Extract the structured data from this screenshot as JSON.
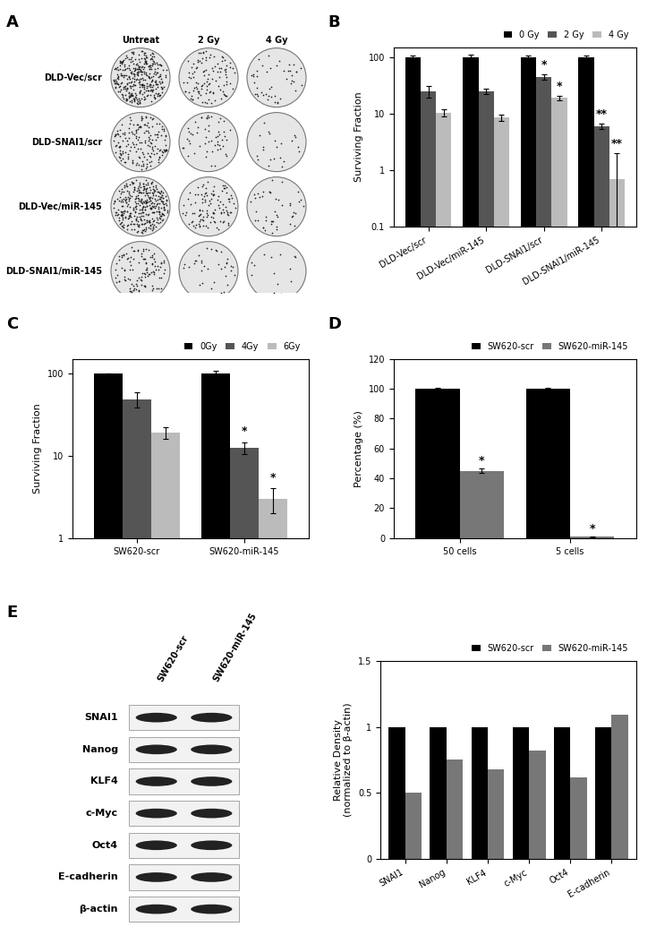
{
  "panel_labels": [
    "A",
    "B",
    "C",
    "D",
    "E"
  ],
  "plates": {
    "columns": [
      "Untreat",
      "2 Gy",
      "4 Gy"
    ],
    "rows": [
      "DLD-Vec/scr",
      "DLD-SNAI1/scr",
      "DLD-Vec/miR-145",
      "DLD-SNAI1/miR-145"
    ]
  },
  "blot": {
    "lanes": [
      "SW620-scr",
      "SW620-miR-145"
    ],
    "proteins": [
      "SNAI1",
      "Nanog",
      "KLF4",
      "c-Myc",
      "Oct4",
      "E-cadherin",
      "β-actin"
    ]
  },
  "chart_data": [
    {
      "type": "bar",
      "log": "y",
      "y_label": "Surviving Fraction",
      "categories": [
        "DLD-Vec/scr",
        "DLD-Vec/miR-145",
        "DLD-SNAI1/scr",
        "DLD-SNAI1/miR-145"
      ],
      "series": [
        {
          "name": "0 Gy",
          "color": "#000000",
          "values": [
            100,
            100,
            100,
            100
          ],
          "errors": [
            8,
            12,
            5,
            5
          ]
        },
        {
          "name": "2 Gy",
          "color": "#555555",
          "values": [
            25,
            25,
            45,
            6
          ],
          "errors": [
            6,
            3,
            5,
            0.6
          ]
        },
        {
          "name": "4 Gy",
          "color": "#bbbbbb",
          "values": [
            10.5,
            8.5,
            19,
            0.7
          ],
          "errors": [
            1.5,
            1.2,
            2,
            1.3
          ]
        }
      ],
      "ylim": [
        0.1,
        150
      ],
      "yticks": [
        0.1,
        1,
        10,
        100
      ],
      "legend": "upper right",
      "annotations": [
        {
          "category": "DLD-SNAI1/scr",
          "series": "2 Gy",
          "text": "*"
        },
        {
          "category": "DLD-SNAI1/scr",
          "series": "4 Gy",
          "text": "*"
        },
        {
          "category": "DLD-SNAI1/miR-145",
          "series": "2 Gy",
          "text": "**"
        },
        {
          "category": "DLD-SNAI1/miR-145",
          "series": "4 Gy",
          "text": "**"
        }
      ]
    },
    {
      "type": "bar",
      "log": "y",
      "y_label": "Surviving Fraction",
      "categories": [
        "SW620-scr",
        "SW620-miR-145"
      ],
      "series": [
        {
          "name": "0Gy",
          "color": "#000000",
          "values": [
            100,
            100
          ],
          "errors": [
            0,
            8
          ]
        },
        {
          "name": "4Gy",
          "color": "#555555",
          "values": [
            48,
            12.5
          ],
          "errors": [
            10,
            2
          ]
        },
        {
          "name": "6Gy",
          "color": "#bbbbbb",
          "values": [
            19,
            3
          ],
          "errors": [
            3,
            1
          ]
        }
      ],
      "ylim": [
        1,
        150
      ],
      "yticks": [
        1,
        10,
        100
      ],
      "legend": "upper right",
      "annotations": [
        {
          "category": "SW620-miR-145",
          "series": "4Gy",
          "text": "*"
        },
        {
          "category": "SW620-miR-145",
          "series": "6Gy",
          "text": "*"
        }
      ]
    },
    {
      "type": "bar",
      "y_label": "Percentage (%)",
      "categories": [
        "50 cells",
        "5 cells"
      ],
      "series": [
        {
          "name": "SW620-scr",
          "color": "#000000",
          "values": [
            100,
            100
          ],
          "errors": [
            0.5,
            0.5
          ]
        },
        {
          "name": "SW620-miR-145",
          "color": "#777777",
          "values": [
            45,
            1
          ],
          "errors": [
            1.5,
            0.3
          ]
        }
      ],
      "ylim": [
        0,
        120
      ],
      "yticks": [
        0,
        20,
        40,
        60,
        80,
        100,
        120
      ],
      "legend": "upper right",
      "annotations": [
        {
          "category": "50 cells",
          "series": "SW620-miR-145",
          "text": "*"
        },
        {
          "category": "5 cells",
          "series": "SW620-miR-145",
          "text": "*"
        }
      ]
    },
    {
      "type": "bar",
      "y_label": "Relative Density\n(normalized to β-actin)",
      "categories": [
        "SNAI1",
        "Nanog",
        "KLF4",
        "c-Myc",
        "Oct4",
        "E-cadherin"
      ],
      "series": [
        {
          "name": "SW620-scr",
          "color": "#000000",
          "values": [
            1,
            1,
            1,
            1,
            1,
            1
          ]
        },
        {
          "name": "SW620-miR-145",
          "color": "#777777",
          "values": [
            0.5,
            0.75,
            0.68,
            0.82,
            0.62,
            1.09
          ]
        }
      ],
      "ylim": [
        0,
        1.5
      ],
      "yticks": [
        0,
        0.5,
        1,
        1.5
      ],
      "legend": "upper right"
    }
  ]
}
